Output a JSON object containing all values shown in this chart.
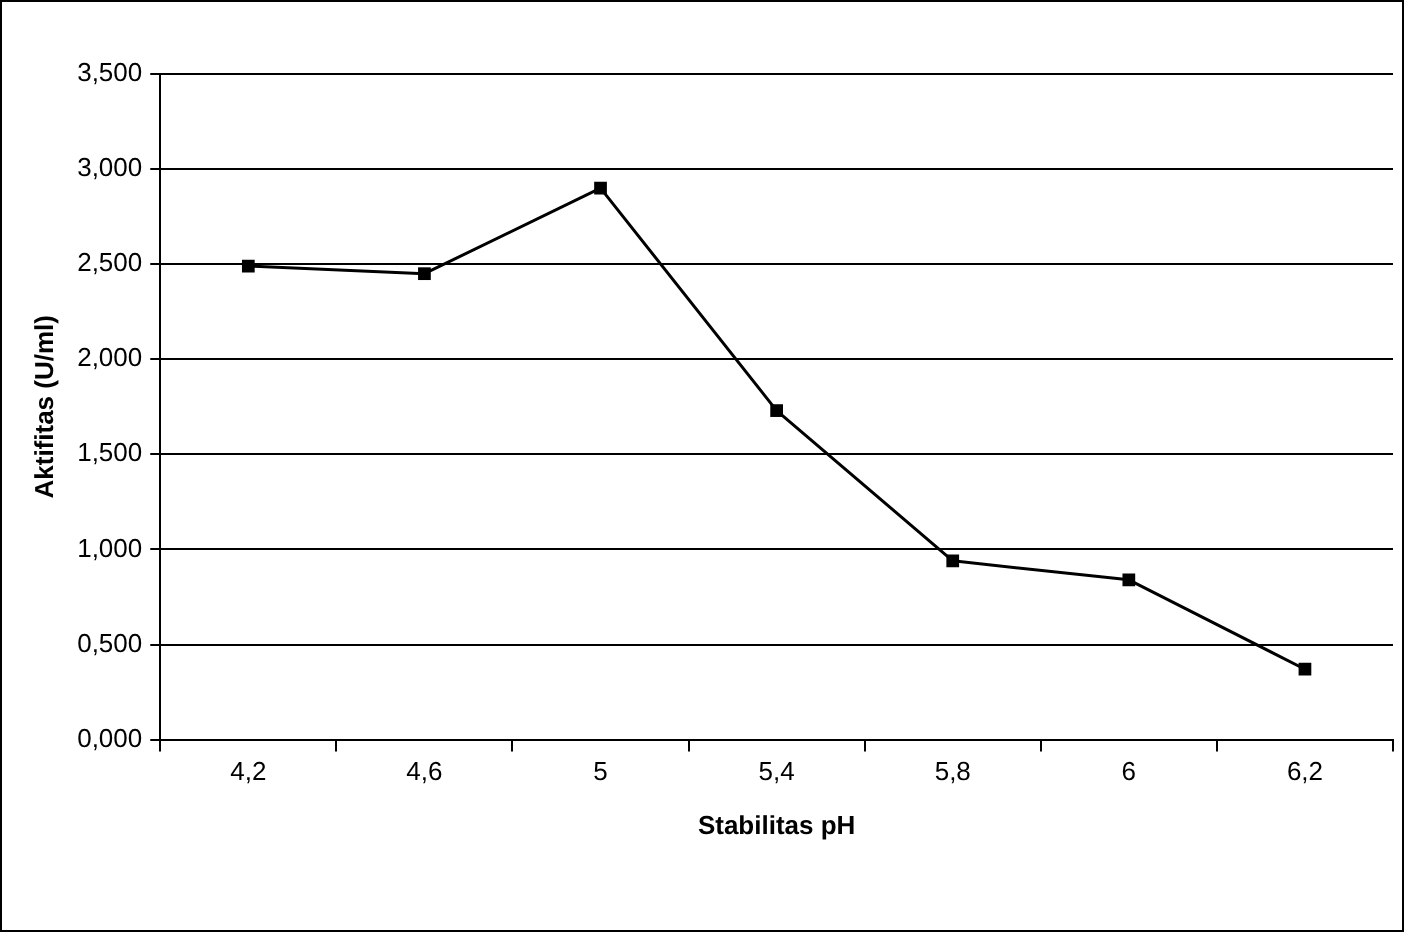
{
  "chart_data": {
    "type": "line",
    "xlabel": "Stabilitas pH",
    "ylabel": "Aktifitas (U/ml)",
    "categories": [
      "4,2",
      "4,6",
      "5",
      "5,4",
      "5,8",
      "6",
      "6,2"
    ],
    "series": [
      {
        "color": "#000000",
        "values": [
          2.49,
          2.45,
          2.9,
          1.73,
          0.94,
          0.84,
          0.37
        ]
      }
    ],
    "ylim": [
      0,
      3.5
    ],
    "yticks": [
      {
        "value": 0,
        "label": "0,000"
      },
      {
        "value": 0.5,
        "label": "0,500"
      },
      {
        "value": 1,
        "label": "1,000"
      },
      {
        "value": 1.5,
        "label": "1,500"
      },
      {
        "value": 2,
        "label": "2,000"
      },
      {
        "value": 2.5,
        "label": "2,500"
      },
      {
        "value": 3,
        "label": "3,000"
      },
      {
        "value": 3.5,
        "label": "3,500"
      }
    ],
    "grid": "y",
    "legend": false,
    "marker": "square",
    "line_style": "solid"
  }
}
